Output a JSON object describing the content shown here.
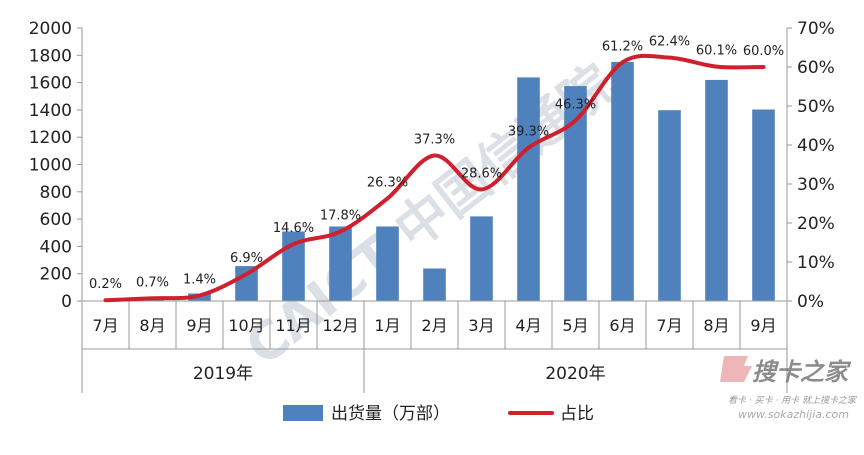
{
  "chart_data": {
    "type": "bar",
    "categories": [
      "7月",
      "8月",
      "9月",
      "10月",
      "11月",
      "12月",
      "1月",
      "2月",
      "3月",
      "4月",
      "5月",
      "6月",
      "7月",
      "8月",
      "9月"
    ],
    "year_groups": [
      {
        "label": "2019年",
        "start": 0,
        "end": 5
      },
      {
        "label": "2020年",
        "start": 6,
        "end": 14
      }
    ],
    "series": [
      {
        "name": "出货量（万部）",
        "type": "bar",
        "axis": "left",
        "color": "#4f81bd",
        "values": [
          1,
          8,
          55,
          256,
          509,
          546,
          546,
          238,
          620,
          1638,
          1574,
          1752,
          1398,
          1620,
          1403
        ]
      },
      {
        "name": "占比",
        "type": "line",
        "axis": "right",
        "color": "#d0202e",
        "values": [
          0.2,
          0.7,
          1.4,
          6.9,
          14.6,
          17.8,
          26.3,
          37.3,
          28.6,
          39.3,
          46.3,
          61.2,
          62.4,
          60.1,
          60.0
        ],
        "labels": [
          "0.2%",
          "0.7%",
          "1.4%",
          "6.9%",
          "14.6%",
          "17.8%",
          "26.3%",
          "37.3%",
          "28.6%",
          "39.3%",
          "46.3%",
          "61.2%",
          "62.4%",
          "60.1%",
          "60.0%"
        ]
      }
    ],
    "y_left": {
      "min": 0,
      "max": 2000,
      "step": 200
    },
    "y_right": {
      "min": 0,
      "max": 70,
      "step": 10,
      "suffix": "%"
    },
    "grid": false,
    "legend_position": "bottom"
  },
  "watermarks": {
    "center": "CAICT 中国信通院",
    "corner_logo": "搜卡之家",
    "corner_tagline": "看卡 · 买卡 · 用卡 就上搜卡之家",
    "corner_url": "www.sokazhijia.com"
  }
}
